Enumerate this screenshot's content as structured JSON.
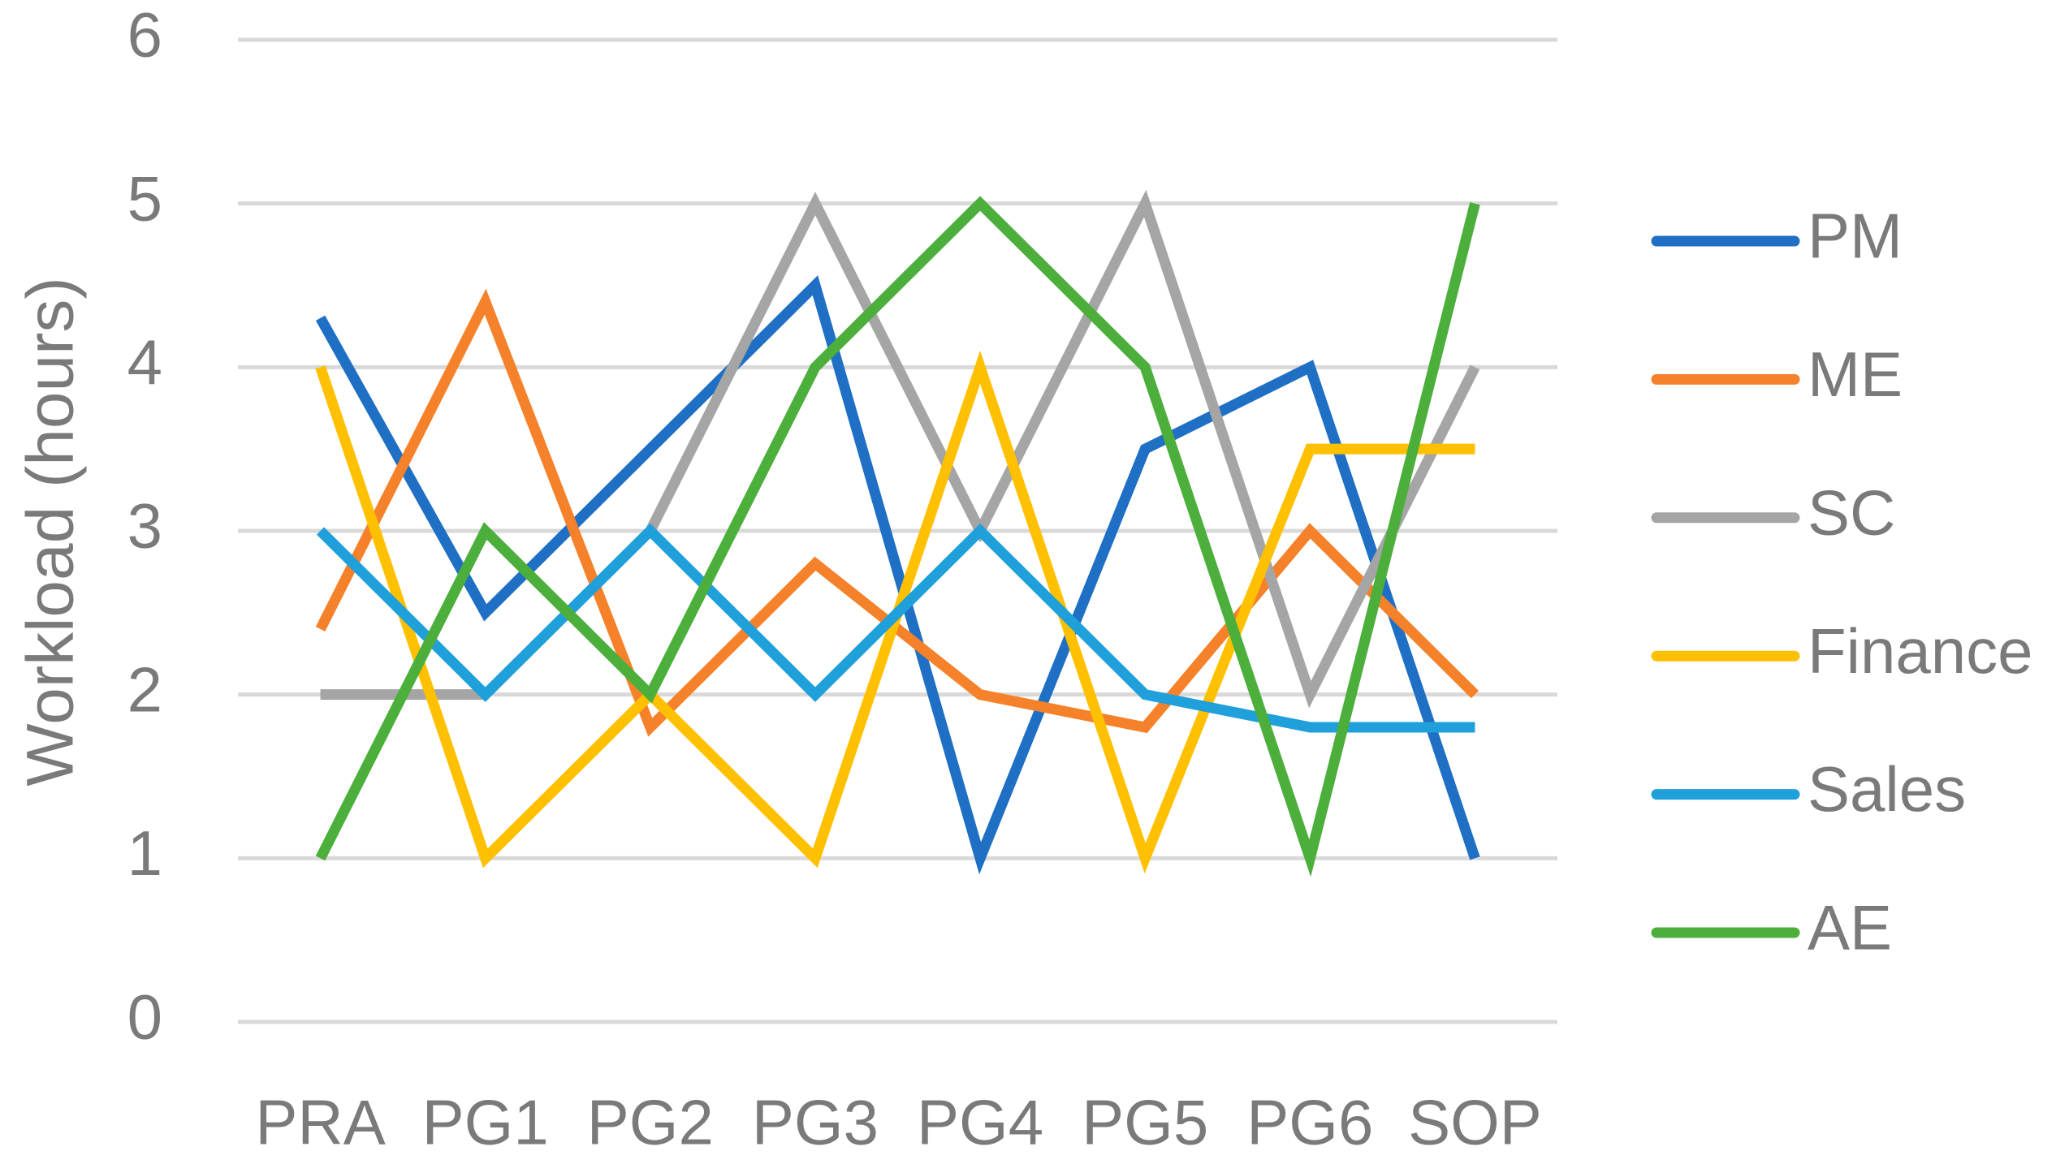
{
  "chart_data": {
    "type": "line",
    "y_label": "Workload (hours)",
    "categories": [
      "PRA",
      "PG1",
      "PG2",
      "PG3",
      "PG4",
      "PG5",
      "PG6",
      "SOP"
    ],
    "series": [
      {
        "name": "PM",
        "color": "#1f6fc4",
        "values": [
          4.3,
          2.5,
          3.5,
          4.5,
          1,
          3.5,
          4,
          1
        ]
      },
      {
        "name": "ME",
        "color": "#f5822a",
        "values": [
          2.4,
          4.4,
          1.8,
          2.8,
          2,
          1.8,
          3,
          2
        ]
      },
      {
        "name": "SC",
        "color": "#a5a5a5",
        "values": [
          2,
          2,
          3,
          5,
          3,
          5,
          2,
          4
        ]
      },
      {
        "name": "Finance",
        "color": "#ffc000",
        "values": [
          4,
          1,
          2,
          1,
          4,
          1,
          3.5,
          3.5
        ]
      },
      {
        "name": "Sales",
        "color": "#1fa0db",
        "values": [
          3,
          2,
          3,
          2,
          3,
          2,
          1.8,
          1.8
        ]
      },
      {
        "name": "AE",
        "color": "#4caf3c",
        "values": [
          1,
          3,
          2,
          4,
          5,
          4,
          1,
          5
        ]
      }
    ],
    "ylim": [
      0,
      6
    ],
    "yticks": [
      0,
      1,
      2,
      3,
      4,
      5,
      6
    ],
    "grid": true,
    "legend": "right"
  }
}
